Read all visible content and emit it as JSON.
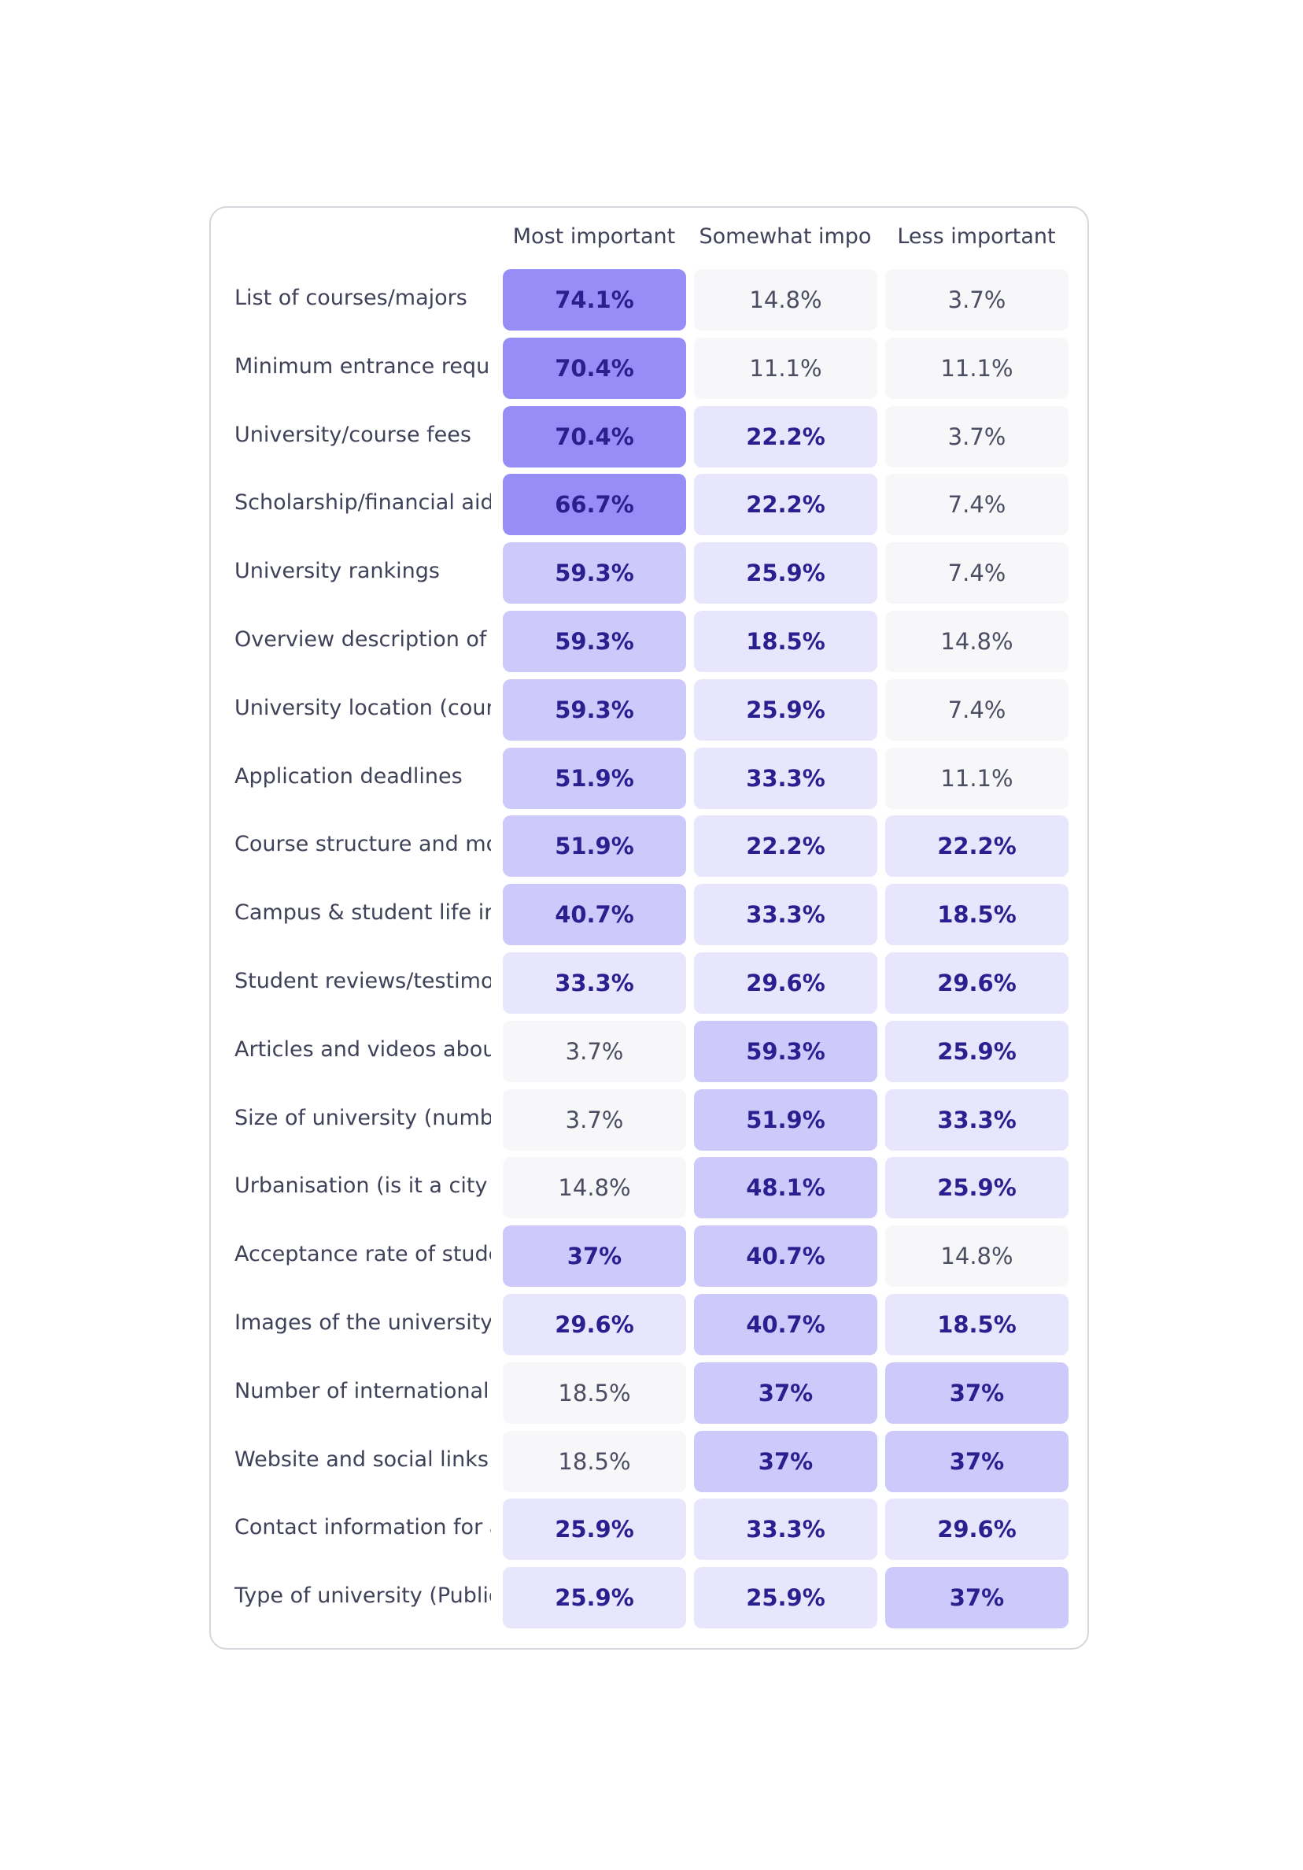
{
  "chart_data": {
    "type": "heatmap",
    "columns": [
      "Most important",
      "Somewhat impo",
      "Less important"
    ],
    "rows": [
      {
        "label": "List of courses/majors",
        "values": [
          "74.1%",
          "14.8%",
          "3.7%"
        ]
      },
      {
        "label": "Minimum entrance require",
        "values": [
          "70.4%",
          "11.1%",
          "11.1%"
        ]
      },
      {
        "label": "University/course fees",
        "values": [
          "70.4%",
          "22.2%",
          "3.7%"
        ]
      },
      {
        "label": "Scholarship/financial aid c",
        "values": [
          "66.7%",
          "22.2%",
          "7.4%"
        ]
      },
      {
        "label": "University rankings",
        "values": [
          "59.3%",
          "25.9%",
          "7.4%"
        ]
      },
      {
        "label": "Overview description of th",
        "values": [
          "59.3%",
          "18.5%",
          "14.8%"
        ]
      },
      {
        "label": "University location (countr",
        "values": [
          "59.3%",
          "25.9%",
          "7.4%"
        ]
      },
      {
        "label": "Application deadlines",
        "values": [
          "51.9%",
          "33.3%",
          "11.1%"
        ]
      },
      {
        "label": "Course structure and moc",
        "values": [
          "51.9%",
          "22.2%",
          "22.2%"
        ]
      },
      {
        "label": "Campus & student life info",
        "values": [
          "40.7%",
          "33.3%",
          "18.5%"
        ]
      },
      {
        "label": "Student reviews/testimon",
        "values": [
          "33.3%",
          "29.6%",
          "29.6%"
        ]
      },
      {
        "label": "Articles and videos about",
        "values": [
          "3.7%",
          "59.3%",
          "25.9%"
        ]
      },
      {
        "label": "Size of university (number",
        "values": [
          "3.7%",
          "51.9%",
          "33.3%"
        ]
      },
      {
        "label": "Urbanisation (is it a city or",
        "values": [
          "14.8%",
          "48.1%",
          "25.9%"
        ]
      },
      {
        "label": "Acceptance rate of studen",
        "values": [
          "37%",
          "40.7%",
          "14.8%"
        ]
      },
      {
        "label": "Images of the university ar",
        "values": [
          "29.6%",
          "40.7%",
          "18.5%"
        ]
      },
      {
        "label": "Number of international st",
        "values": [
          "18.5%",
          "37%",
          "37%"
        ]
      },
      {
        "label": "Website and social links",
        "values": [
          "18.5%",
          "37%",
          "37%"
        ]
      },
      {
        "label": "Contact information for a",
        "values": [
          "25.9%",
          "33.3%",
          "29.6%"
        ]
      },
      {
        "label": "Type of university (Public, I",
        "values": [
          "25.9%",
          "25.9%",
          "37%"
        ]
      }
    ],
    "colors": {
      "very_high": "#968df7",
      "high": "#cdcafb",
      "medium": "#e7e6fd",
      "low": "#f7f7f9"
    }
  }
}
